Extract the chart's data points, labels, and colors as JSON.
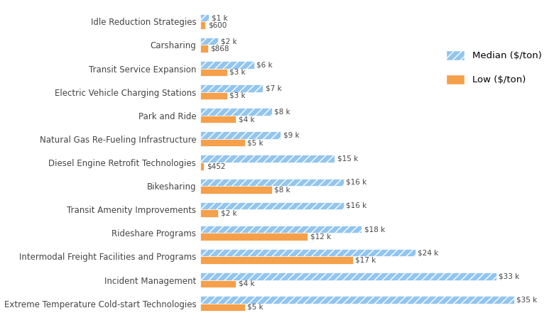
{
  "categories": [
    "Idle Reduction Strategies",
    "Carsharing",
    "Transit Service Expansion",
    "Electric Vehicle Charging Stations",
    "Park and Ride",
    "Natural Gas Re-Fueling Infrastructure",
    "Diesel Engine Retrofit Technologies",
    "Bikesharing",
    "Transit Amenity Improvements",
    "Rideshare Programs",
    "Intermodal Freight Facilities and Programs",
    "Incident Management",
    "Extreme Temperature Cold-start Technologies"
  ],
  "median_values": [
    1000,
    2000,
    6000,
    7000,
    8000,
    9000,
    15000,
    16000,
    16000,
    18000,
    24000,
    33000,
    35000
  ],
  "low_values": [
    600,
    868,
    3000,
    3000,
    4000,
    5000,
    452,
    8000,
    2000,
    12000,
    17000,
    4000,
    5000
  ],
  "median_labels": [
    "$1 k",
    "$2 k",
    "$6 k",
    "$7 k",
    "$8 k",
    "$9 k",
    "$15 k",
    "$16 k",
    "$16 k",
    "$18 k",
    "$24 k",
    "$33 k",
    "$35 k"
  ],
  "low_labels": [
    "$600",
    "$868",
    "$3 k",
    "$3 k",
    "$4 k",
    "$5 k",
    "$452",
    "$8 k",
    "$2 k",
    "$12 k",
    "$17 k",
    "$4 k",
    "$5 k"
  ],
  "median_color": "#92c5f0",
  "median_hatch": "///",
  "low_color": "#f5a04a",
  "bar_height": 0.32,
  "xlim": [
    0,
    39000
  ],
  "legend_median": "Median ($/ton)",
  "legend_low": "Low ($/ton)",
  "label_fontsize": 7.5,
  "tick_fontsize": 8.5,
  "legend_fontsize": 9.5
}
